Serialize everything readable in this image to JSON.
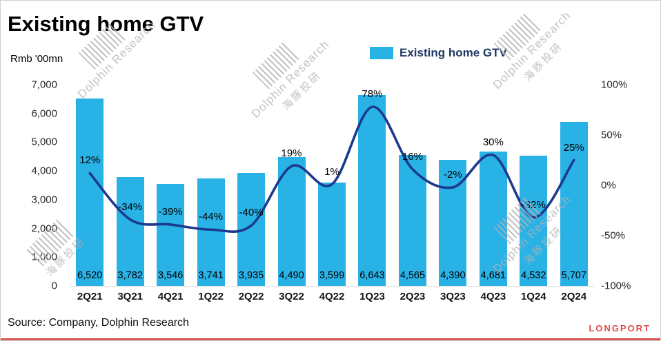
{
  "title": "Existing home GTV",
  "y_axis_unit": "Rmb '00mn",
  "legend": {
    "label": "Existing home GTV",
    "color": "#29B2E6"
  },
  "source": "Source: Company, Dolphin Research",
  "brand": "LONGPORT",
  "watermark": {
    "en": "Dolphin Research",
    "zh": "海豚投研"
  },
  "colors": {
    "bar": "#29B2E6",
    "line": "#1B3A8F",
    "brand_red": "#E24A4A"
  },
  "chart_data": {
    "type": "bar",
    "title": "Existing home GTV",
    "categories": [
      "2Q21",
      "3Q21",
      "4Q21",
      "1Q22",
      "2Q22",
      "3Q22",
      "4Q22",
      "1Q23",
      "2Q23",
      "3Q23",
      "4Q23",
      "1Q24",
      "2Q24"
    ],
    "series": [
      {
        "type": "bar",
        "axis": "left",
        "color": "#29B2E6",
        "values": [
          6520,
          3782,
          3546,
          3741,
          3935,
          4490,
          3599,
          6643,
          4565,
          4390,
          4681,
          4532,
          5707
        ]
      },
      {
        "type": "line",
        "axis": "right",
        "color": "#1B3A8F",
        "values_pct": [
          12,
          -34,
          -39,
          -44,
          -40,
          19,
          1,
          78,
          16,
          -2,
          30,
          -32,
          25
        ]
      }
    ],
    "bar_labels": [
      "6,520",
      "3,782",
      "3,546",
      "3,741",
      "3,935",
      "4,490",
      "3,599",
      "6,643",
      "4,565",
      "4,390",
      "4,681",
      "4,532",
      "5,707"
    ],
    "line_labels": [
      "12%",
      "-34%",
      "-39%",
      "-44%",
      "-40%",
      "19%",
      "1%",
      "78%",
      "16%",
      "-2%",
      "30%",
      "-32%",
      "25%"
    ],
    "left_axis": {
      "min": 0,
      "max": 7000,
      "step": 1000,
      "ticks": [
        "7,000",
        "6,000",
        "5,000",
        "4,000",
        "3,000",
        "2,000",
        "1,000",
        "0"
      ]
    },
    "right_axis": {
      "min": -100,
      "max": 100,
      "step": 50,
      "ticks": [
        "100%",
        "50%",
        "0%",
        "-50%",
        "-100%"
      ]
    },
    "grid": false,
    "legend_position": "top"
  }
}
